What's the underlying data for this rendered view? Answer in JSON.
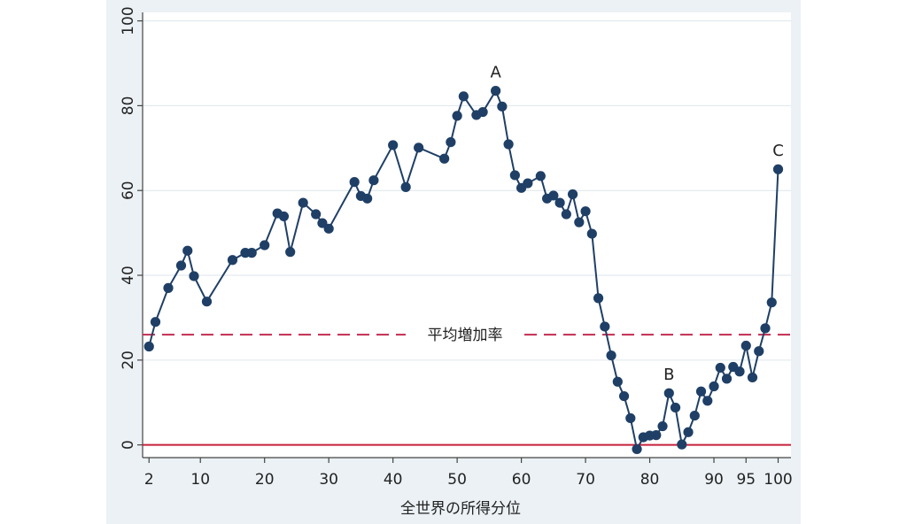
{
  "chart_data": {
    "type": "line",
    "title": "",
    "xlabel": "全世界の所得分位",
    "ylabel": "",
    "xlim": [
      1,
      102
    ],
    "ylim": [
      -3,
      102
    ],
    "x_ticks": [
      2,
      10,
      20,
      30,
      40,
      50,
      60,
      70,
      80,
      90,
      95,
      100
    ],
    "y_ticks": [
      0,
      20,
      40,
      60,
      80,
      100
    ],
    "grid": "horizontal",
    "series": [
      {
        "color": "#1f3f66",
        "points": [
          [
            2,
            23.2
          ],
          [
            3,
            29
          ],
          [
            5,
            37
          ],
          [
            7,
            42.3
          ],
          [
            8,
            45.8
          ],
          [
            9,
            39.8
          ],
          [
            11,
            33.8
          ],
          [
            15,
            43.6
          ],
          [
            17,
            45.3
          ],
          [
            18,
            45.3
          ],
          [
            20,
            47.1
          ],
          [
            22,
            54.6
          ],
          [
            23,
            53.9
          ],
          [
            24,
            45.5
          ],
          [
            26,
            57.1
          ],
          [
            28,
            54.4
          ],
          [
            29,
            52.3
          ],
          [
            30,
            51
          ],
          [
            34,
            62
          ],
          [
            35,
            58.7
          ],
          [
            36,
            58.1
          ],
          [
            37,
            62.4
          ],
          [
            40,
            70.7
          ],
          [
            42,
            60.8
          ],
          [
            44,
            70.1
          ],
          [
            48,
            67.5
          ],
          [
            49,
            71.4
          ],
          [
            50,
            77.6
          ],
          [
            51,
            82.2
          ],
          [
            53,
            77.8
          ],
          [
            54,
            78.5
          ],
          [
            56,
            83.5
          ],
          [
            57,
            79.8
          ],
          [
            58,
            70.9
          ],
          [
            59,
            63.6
          ],
          [
            60,
            60.6
          ],
          [
            61,
            61.7
          ],
          [
            63,
            63.4
          ],
          [
            64,
            58.1
          ],
          [
            65,
            58.8
          ],
          [
            66,
            57.1
          ],
          [
            67,
            54.4
          ],
          [
            68,
            59.1
          ],
          [
            69,
            52.5
          ],
          [
            70,
            55.1
          ],
          [
            71,
            49.8
          ],
          [
            72,
            34.6
          ],
          [
            73,
            27.9
          ],
          [
            74,
            21.1
          ],
          [
            75,
            14.9
          ],
          [
            76,
            11.5
          ],
          [
            77,
            6.3
          ],
          [
            78,
            -1
          ],
          [
            79,
            1.8
          ],
          [
            80,
            2.2
          ],
          [
            81,
            2.3
          ],
          [
            82,
            4.4
          ],
          [
            83,
            12.2
          ],
          [
            84,
            8.8
          ],
          [
            85,
            0.1
          ],
          [
            86,
            3
          ],
          [
            87,
            6.9
          ],
          [
            88,
            12.6
          ],
          [
            89,
            10.4
          ],
          [
            90,
            13.8
          ],
          [
            91,
            18.2
          ],
          [
            92,
            15.6
          ],
          [
            93,
            18.4
          ],
          [
            94,
            17.3
          ],
          [
            95,
            23.4
          ],
          [
            96,
            15.9
          ],
          [
            97,
            22.1
          ],
          [
            98,
            27.5
          ],
          [
            99,
            33.6
          ],
          [
            100,
            65
          ]
        ]
      }
    ],
    "reference_lines": [
      {
        "y": 26,
        "label": "平均増加率",
        "color": "#c8385a",
        "style": "dashed"
      },
      {
        "y": 0,
        "color": "#c8203a",
        "style": "solid"
      }
    ],
    "annotations": [
      {
        "x": 56,
        "y": 83.5,
        "text": "A"
      },
      {
        "x": 83,
        "y": 12.2,
        "text": "B"
      },
      {
        "x": 100,
        "y": 65,
        "text": "C"
      }
    ]
  },
  "colors": {
    "background": "#ebf1f5",
    "plot_background": "#ffffff",
    "grid": "#dde6ec",
    "axis": "#444444"
  }
}
